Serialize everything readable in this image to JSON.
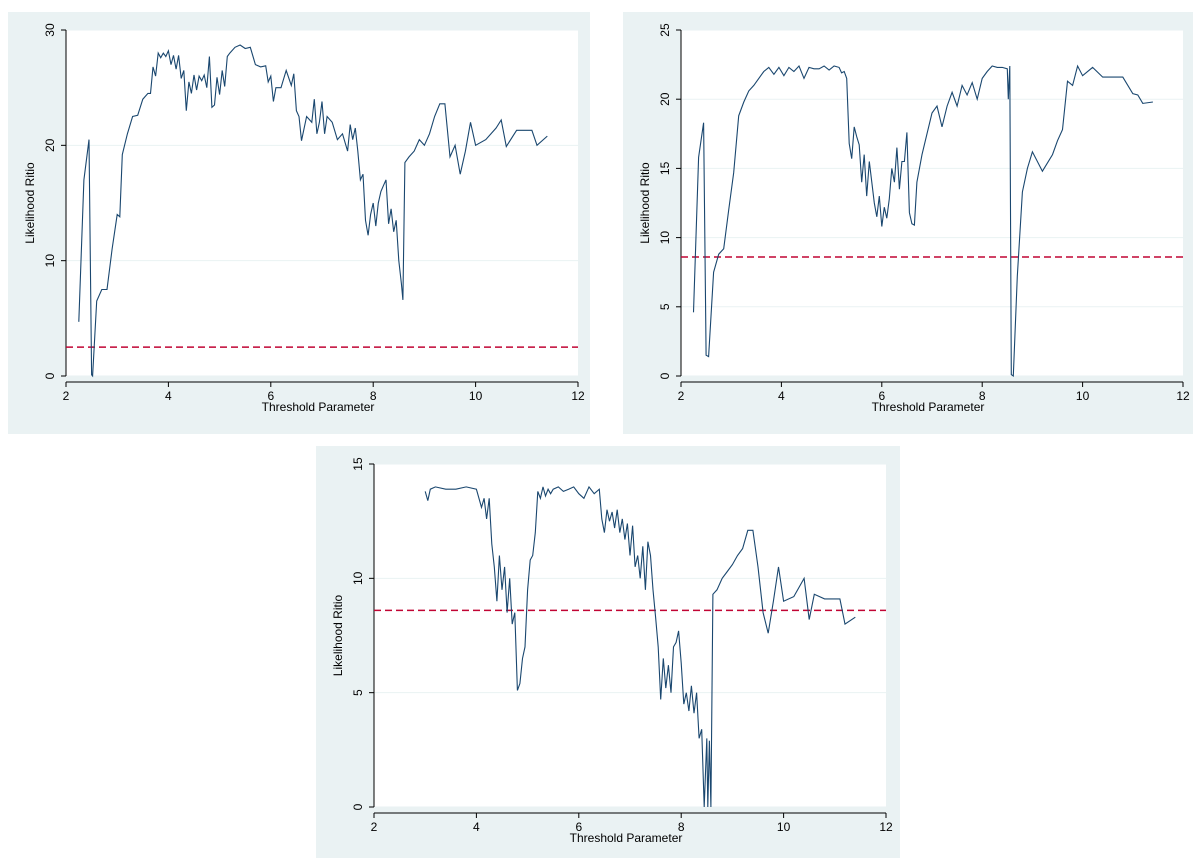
{
  "chart_data": [
    {
      "type": "line",
      "xlabel": "Threshold Parameter",
      "ylabel": "Likelihood Ritio",
      "xlim": [
        2,
        12
      ],
      "ylim": [
        0,
        30
      ],
      "x_ticks": [
        "2",
        "4",
        "6",
        "8",
        "10",
        "12"
      ],
      "y_ticks": [
        "0",
        "10",
        "20",
        "30"
      ],
      "reference_line": 2.5,
      "series": [
        {
          "x": [
            2.25,
            2.35,
            2.45,
            2.5,
            2.52,
            2.6,
            2.7,
            2.8,
            2.9,
            3.0,
            3.05,
            3.1,
            3.2,
            3.3,
            3.4,
            3.5,
            3.6,
            3.65,
            3.7,
            3.75,
            3.8,
            3.85,
            3.9,
            3.95,
            4.0,
            4.05,
            4.1,
            4.15,
            4.2,
            4.25,
            4.3,
            4.35,
            4.4,
            4.45,
            4.5,
            4.55,
            4.6,
            4.65,
            4.7,
            4.75,
            4.8,
            4.85,
            4.9,
            4.95,
            5.0,
            5.05,
            5.1,
            5.15,
            5.2,
            5.3,
            5.4,
            5.5,
            5.6,
            5.7,
            5.8,
            5.9,
            5.95,
            6.0,
            6.05,
            6.1,
            6.2,
            6.3,
            6.4,
            6.45,
            6.5,
            6.55,
            6.6,
            6.7,
            6.8,
            6.85,
            6.9,
            6.95,
            7.0,
            7.05,
            7.1,
            7.2,
            7.3,
            7.4,
            7.5,
            7.55,
            7.6,
            7.65,
            7.7,
            7.75,
            7.8,
            7.85,
            7.9,
            7.95,
            8.0,
            8.05,
            8.1,
            8.15,
            8.2,
            8.25,
            8.3,
            8.35,
            8.4,
            8.45,
            8.5,
            8.55,
            8.58,
            8.62,
            8.7,
            8.8,
            8.9,
            9.0,
            9.1,
            9.2,
            9.3,
            9.4,
            9.5,
            9.6,
            9.7,
            9.8,
            9.9,
            10.0,
            10.2,
            10.4,
            10.5,
            10.6,
            10.8,
            11.0,
            11.1,
            11.2,
            11.4
          ],
          "y": [
            4.7,
            17.0,
            20.5,
            0.1,
            0.0,
            6.5,
            7.5,
            7.5,
            11.0,
            14.0,
            13.8,
            19.2,
            21.0,
            22.5,
            22.6,
            24.0,
            24.5,
            24.5,
            26.8,
            26.0,
            28.0,
            27.6,
            28.0,
            27.7,
            28.2,
            27.0,
            27.8,
            26.6,
            27.8,
            25.8,
            26.5,
            23.0,
            25.5,
            24.5,
            26.1,
            24.8,
            26.0,
            25.6,
            26.1,
            25.0,
            27.7,
            23.3,
            23.5,
            25.9,
            24.4,
            26.5,
            25.1,
            27.7,
            28.0,
            28.5,
            28.7,
            28.4,
            28.5,
            27.0,
            26.8,
            26.9,
            25.5,
            26.0,
            23.8,
            25.0,
            25.0,
            26.5,
            25.2,
            26.2,
            23.0,
            22.5,
            20.4,
            22.5,
            22.0,
            24.0,
            21.0,
            22.0,
            23.8,
            21.0,
            22.5,
            22.0,
            20.5,
            21.0,
            19.5,
            21.8,
            20.5,
            21.5,
            19.5,
            17.0,
            17.5,
            13.5,
            12.2,
            14.0,
            15.0,
            13.0,
            15.0,
            16.0,
            16.5,
            17.0,
            13.2,
            14.5,
            12.5,
            13.5,
            10.0,
            8.0,
            6.6,
            18.5,
            19.0,
            19.5,
            20.5,
            20.0,
            21.0,
            22.5,
            23.6,
            23.6,
            19.0,
            20.0,
            17.5,
            19.5,
            22.0,
            20.0,
            20.5,
            21.5,
            22.2,
            19.9,
            21.3,
            21.3,
            21.3,
            20.0,
            20.8
          ]
        }
      ]
    },
    {
      "type": "line",
      "xlabel": "Threshold Parameter",
      "ylabel": "Likelihood Ritio",
      "xlim": [
        2,
        12
      ],
      "ylim": [
        0,
        25
      ],
      "x_ticks": [
        "2",
        "4",
        "6",
        "8",
        "10",
        "12"
      ],
      "y_ticks": [
        "0",
        "5",
        "10",
        "15",
        "20",
        "25"
      ],
      "reference_line": 8.6,
      "series": [
        {
          "x": [
            2.25,
            2.35,
            2.45,
            2.5,
            2.55,
            2.65,
            2.75,
            2.85,
            2.95,
            3.05,
            3.15,
            3.25,
            3.35,
            3.45,
            3.55,
            3.65,
            3.75,
            3.85,
            3.95,
            4.05,
            4.15,
            4.25,
            4.35,
            4.45,
            4.55,
            4.65,
            4.75,
            4.85,
            4.95,
            5.05,
            5.15,
            5.2,
            5.25,
            5.3,
            5.35,
            5.4,
            5.45,
            5.5,
            5.55,
            5.6,
            5.65,
            5.7,
            5.75,
            5.8,
            5.85,
            5.9,
            5.95,
            6.0,
            6.05,
            6.1,
            6.15,
            6.2,
            6.25,
            6.3,
            6.35,
            6.4,
            6.45,
            6.5,
            6.55,
            6.6,
            6.65,
            6.7,
            6.8,
            6.9,
            7.0,
            7.1,
            7.2,
            7.3,
            7.4,
            7.5,
            7.6,
            7.7,
            7.8,
            7.9,
            8.0,
            8.1,
            8.2,
            8.3,
            8.4,
            8.5,
            8.52,
            8.55,
            8.58,
            8.62,
            8.7,
            8.8,
            8.9,
            9.0,
            9.2,
            9.4,
            9.5,
            9.6,
            9.7,
            9.8,
            9.9,
            10.0,
            10.2,
            10.4,
            10.5,
            10.8,
            11.0,
            11.1,
            11.2,
            11.4
          ],
          "y": [
            4.6,
            15.8,
            18.3,
            1.5,
            1.4,
            7.5,
            8.8,
            9.2,
            12.0,
            14.7,
            18.8,
            19.8,
            20.6,
            21.0,
            21.5,
            22.0,
            22.3,
            21.8,
            22.3,
            21.7,
            22.3,
            22.0,
            22.4,
            21.5,
            22.3,
            22.2,
            22.2,
            22.4,
            22.1,
            22.4,
            22.3,
            21.9,
            22.0,
            21.5,
            16.8,
            15.7,
            18.0,
            17.3,
            16.7,
            14.0,
            16.0,
            13.0,
            15.5,
            14.0,
            12.5,
            11.5,
            13.0,
            10.8,
            12.2,
            11.4,
            12.8,
            15.0,
            14.0,
            16.5,
            13.5,
            15.5,
            15.5,
            17.6,
            11.8,
            11.0,
            10.9,
            14.0,
            16.0,
            17.5,
            19.0,
            19.5,
            18.0,
            19.5,
            20.5,
            19.5,
            21.0,
            20.3,
            21.2,
            20.0,
            21.5,
            22.0,
            22.4,
            22.3,
            22.3,
            22.2,
            20.0,
            22.4,
            0.1,
            0.0,
            7.2,
            13.3,
            15.0,
            16.2,
            14.8,
            16.0,
            17.0,
            17.8,
            21.3,
            21.0,
            22.4,
            21.7,
            22.3,
            21.6,
            21.6,
            21.6,
            20.4,
            20.3,
            19.7,
            19.8
          ]
        }
      ]
    },
    {
      "type": "line",
      "xlabel": "Threshold Parameter",
      "ylabel": "Likelihood Ritio",
      "xlim": [
        2,
        12
      ],
      "ylim": [
        0,
        15
      ],
      "x_ticks": [
        "2",
        "4",
        "6",
        "8",
        "10",
        "12"
      ],
      "y_ticks": [
        "0",
        "5",
        "10",
        "15"
      ],
      "reference_line": 8.6,
      "series": [
        {
          "x": [
            3.0,
            3.05,
            3.1,
            3.2,
            3.4,
            3.6,
            3.8,
            4.0,
            4.1,
            4.15,
            4.2,
            4.25,
            4.3,
            4.35,
            4.4,
            4.45,
            4.5,
            4.55,
            4.6,
            4.65,
            4.7,
            4.75,
            4.8,
            4.85,
            4.9,
            4.95,
            5.0,
            5.05,
            5.1,
            5.15,
            5.2,
            5.25,
            5.3,
            5.35,
            5.4,
            5.45,
            5.5,
            5.6,
            5.7,
            5.8,
            5.9,
            6.0,
            6.1,
            6.2,
            6.3,
            6.4,
            6.45,
            6.5,
            6.55,
            6.6,
            6.65,
            6.7,
            6.75,
            6.8,
            6.85,
            6.9,
            6.95,
            7.0,
            7.05,
            7.1,
            7.15,
            7.2,
            7.25,
            7.3,
            7.35,
            7.4,
            7.45,
            7.5,
            7.55,
            7.6,
            7.65,
            7.7,
            7.75,
            7.8,
            7.85,
            7.9,
            7.95,
            8.0,
            8.05,
            8.1,
            8.15,
            8.2,
            8.25,
            8.3,
            8.35,
            8.4,
            8.45,
            8.5,
            8.52,
            8.55,
            8.58,
            8.62,
            8.7,
            8.8,
            8.9,
            9.0,
            9.1,
            9.2,
            9.3,
            9.4,
            9.5,
            9.6,
            9.7,
            9.8,
            9.9,
            10.0,
            10.2,
            10.4,
            10.5,
            10.6,
            10.8,
            11.0,
            11.1,
            11.2,
            11.4
          ],
          "y": [
            13.8,
            13.4,
            13.9,
            14.0,
            13.9,
            13.9,
            14.0,
            13.9,
            13.1,
            13.5,
            12.6,
            13.5,
            11.5,
            10.5,
            9.0,
            11.0,
            9.5,
            10.5,
            8.5,
            10.0,
            8.0,
            8.5,
            5.1,
            5.4,
            6.5,
            7.0,
            9.5,
            10.8,
            11.0,
            12.0,
            13.8,
            13.5,
            14.0,
            13.6,
            13.9,
            13.7,
            13.9,
            14.0,
            13.8,
            13.9,
            14.0,
            13.7,
            13.5,
            14.0,
            13.7,
            13.9,
            12.6,
            12.0,
            13.0,
            12.5,
            12.9,
            12.2,
            13.0,
            12.0,
            12.6,
            11.7,
            12.4,
            11.0,
            12.3,
            10.5,
            11.0,
            10.0,
            11.4,
            9.5,
            11.6,
            11.0,
            9.5,
            8.3,
            7.0,
            4.7,
            6.5,
            5.2,
            6.2,
            5.0,
            7.0,
            7.2,
            7.7,
            6.3,
            4.5,
            5.0,
            4.2,
            5.3,
            4.1,
            5.0,
            3.0,
            3.4,
            0.0,
            3.0,
            0.0,
            2.9,
            0.0,
            9.3,
            9.5,
            10.0,
            10.3,
            10.6,
            11.0,
            11.3,
            12.1,
            12.1,
            10.5,
            8.5,
            7.6,
            9.0,
            10.5,
            9.0,
            9.2,
            10.0,
            8.2,
            9.3,
            9.1,
            9.1,
            9.1,
            8.0,
            8.3
          ]
        }
      ]
    }
  ]
}
